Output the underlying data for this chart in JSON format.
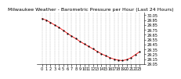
{
  "title": "Milwaukee Weather - Barometric Pressure per Hour (Last 24 Hours)",
  "pressure_values": [
    29.98,
    29.95,
    29.9,
    29.85,
    29.8,
    29.74,
    29.68,
    29.62,
    29.57,
    29.51,
    29.46,
    29.41,
    29.36,
    29.31,
    29.26,
    29.22,
    29.18,
    29.15,
    29.13,
    29.12,
    29.14,
    29.18,
    29.24,
    29.3
  ],
  "x_values": [
    0,
    1,
    2,
    3,
    4,
    5,
    6,
    7,
    8,
    9,
    10,
    11,
    12,
    13,
    14,
    15,
    16,
    17,
    18,
    19,
    20,
    21,
    22,
    23
  ],
  "line_color": "#ff0000",
  "marker_color": "#000000",
  "bg_color": "#ffffff",
  "grid_color": "#aaaaaa",
  "title_fontsize": 4.5,
  "tick_fontsize": 3.5,
  "ylabel_fontsize": 3.5,
  "ylim_min": 29.05,
  "ylim_max": 30.1,
  "ytick_interval": 0.1
}
